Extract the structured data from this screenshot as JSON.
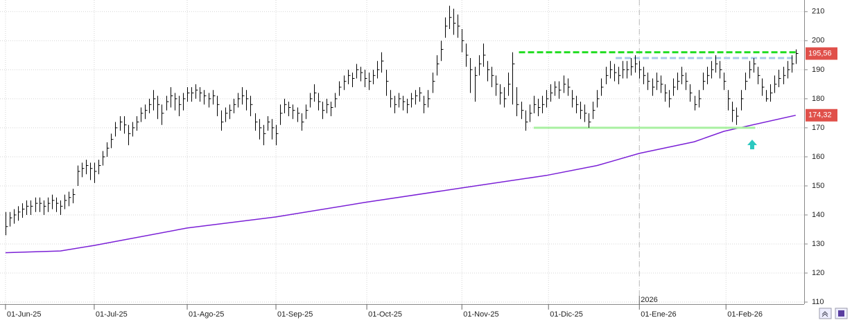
{
  "chart_data": {
    "type": "ohlc",
    "xlim": [
      -1.3,
      189
    ],
    "ylim": [
      109.3,
      214
    ],
    "yticks": [
      110,
      120,
      130,
      140,
      150,
      160,
      170,
      180,
      190,
      200,
      210
    ],
    "xticks": [
      {
        "value": 0,
        "label": "01-Jun-25"
      },
      {
        "value": 21,
        "label": "01-Jul-25"
      },
      {
        "value": 43,
        "label": "01-Ago-25"
      },
      {
        "value": 64,
        "label": "01-Sep-25"
      },
      {
        "value": 85.5,
        "label": "01-Oct-25"
      },
      {
        "value": 108,
        "label": "01-Nov-25"
      },
      {
        "value": 128.5,
        "label": "01-Dic-25"
      },
      {
        "value": 150,
        "label": "01-Ene-26"
      },
      {
        "value": 170.5,
        "label": "01-Feb-26"
      }
    ],
    "grid": true,
    "year_marker": {
      "value": 150,
      "label": "2026"
    },
    "bar_color": "#000000",
    "high": [
      141,
      141,
      142,
      143,
      144,
      145,
      145,
      146,
      146,
      145,
      146,
      147,
      146,
      145,
      147,
      148,
      149,
      157,
      158,
      159,
      158,
      158,
      159,
      162,
      165,
      168,
      172,
      174,
      174,
      171,
      172,
      174,
      177,
      178,
      180,
      183,
      181,
      178,
      181,
      184,
      182,
      181,
      182,
      184,
      184,
      185,
      184,
      183,
      182,
      183,
      181,
      176,
      177,
      178,
      180,
      182,
      184,
      183,
      181,
      175,
      173,
      171,
      174,
      173,
      171,
      178,
      180,
      179,
      178,
      177,
      175,
      178,
      182,
      185,
      182,
      179,
      180,
      179,
      182,
      186,
      188,
      190,
      189,
      192,
      191,
      190,
      189,
      190,
      193,
      196,
      190,
      183,
      181,
      182,
      181,
      180,
      182,
      183,
      184,
      181,
      183,
      189,
      195,
      200,
      208,
      212,
      211,
      209,
      204,
      199,
      194,
      191,
      195,
      199,
      193,
      191,
      188,
      185,
      184,
      189,
      196,
      184,
      179,
      176,
      178,
      181,
      180,
      181,
      183,
      185,
      186,
      186,
      188,
      187,
      183,
      181,
      179,
      178,
      175,
      179,
      183,
      187,
      191,
      193,
      192,
      191,
      193,
      193,
      194,
      195,
      193,
      191,
      189,
      187,
      189,
      188,
      185,
      183,
      187,
      189,
      191,
      189,
      185,
      181,
      183,
      189,
      191,
      193,
      195,
      193,
      189,
      183,
      179,
      177,
      183,
      189,
      193,
      194,
      191,
      187,
      183,
      185,
      188,
      190,
      191,
      193,
      195,
      197
    ],
    "low": [
      133,
      136,
      137,
      138,
      139,
      140,
      140,
      141,
      141,
      140,
      141,
      142,
      141,
      140,
      142,
      143,
      144,
      150,
      153,
      154,
      152,
      151,
      154,
      157,
      160,
      163,
      167,
      169,
      168,
      164,
      167,
      169,
      172,
      173,
      175,
      176,
      173,
      171,
      176,
      177,
      176,
      174,
      176,
      179,
      179,
      180,
      179,
      178,
      177,
      178,
      174,
      169,
      172,
      173,
      175,
      177,
      178,
      176,
      174,
      169,
      166,
      164,
      169,
      166,
      164,
      171,
      175,
      174,
      173,
      172,
      169,
      173,
      177,
      179,
      176,
      173,
      175,
      174,
      177,
      181,
      183,
      185,
      184,
      187,
      186,
      184,
      183,
      185,
      187,
      189,
      181,
      177,
      175,
      177,
      176,
      175,
      177,
      178,
      179,
      175,
      177,
      182,
      188,
      193,
      201,
      204,
      202,
      201,
      196,
      191,
      182,
      179,
      188,
      191,
      186,
      184,
      181,
      178,
      177,
      181,
      178,
      174,
      173,
      169,
      172,
      175,
      174,
      175,
      177,
      179,
      181,
      180,
      182,
      181,
      177,
      175,
      173,
      172,
      170,
      173,
      177,
      181,
      185,
      187,
      186,
      185,
      187,
      187,
      188,
      189,
      187,
      185,
      183,
      181,
      183,
      182,
      179,
      177,
      181,
      183,
      185,
      183,
      179,
      176,
      177,
      183,
      185,
      187,
      189,
      187,
      183,
      176,
      172,
      171,
      176,
      183,
      187,
      189,
      185,
      181,
      179,
      179,
      182,
      184,
      185,
      187,
      189,
      192
    ],
    "close": [
      136,
      139,
      140,
      141,
      142,
      143,
      143,
      144,
      144,
      143,
      144,
      145,
      144,
      143,
      145,
      146,
      147,
      155,
      156,
      157,
      156,
      155,
      157,
      160,
      163,
      166,
      170,
      172,
      171,
      168,
      170,
      172,
      175,
      176,
      178,
      180,
      178,
      175,
      179,
      181,
      180,
      178,
      180,
      182,
      182,
      183,
      182,
      181,
      180,
      181,
      178,
      172,
      175,
      176,
      178,
      180,
      181,
      180,
      178,
      172,
      170,
      168,
      172,
      170,
      168,
      175,
      178,
      177,
      176,
      175,
      172,
      176,
      180,
      182,
      179,
      176,
      178,
      177,
      180,
      184,
      186,
      188,
      187,
      190,
      189,
      187,
      186,
      188,
      190,
      193,
      186,
      180,
      178,
      180,
      179,
      178,
      180,
      181,
      182,
      178,
      180,
      186,
      192,
      197,
      205,
      208,
      206,
      205,
      200,
      195,
      190,
      188,
      192,
      195,
      190,
      188,
      185,
      182,
      180,
      185,
      192,
      178,
      176,
      172,
      175,
      178,
      177,
      178,
      180,
      182,
      184,
      183,
      185,
      184,
      180,
      178,
      176,
      175,
      172,
      176,
      180,
      184,
      188,
      190,
      189,
      188,
      190,
      190,
      191,
      192,
      190,
      188,
      186,
      184,
      186,
      185,
      182,
      180,
      184,
      186,
      188,
      186,
      182,
      178,
      180,
      186,
      188,
      190,
      192,
      190,
      186,
      180,
      176,
      174,
      180,
      186,
      190,
      192,
      188,
      184,
      180,
      182,
      185,
      187,
      188,
      190,
      192,
      195.56
    ],
    "moving_average": {
      "color": "#7a1fd6",
      "x": [
        0,
        13,
        21,
        43,
        64,
        85,
        108,
        128,
        140,
        150,
        163,
        170,
        187
      ],
      "values": [
        127.0,
        127.6,
        129.5,
        135.5,
        139.3,
        144.3,
        149.3,
        153.6,
        157.0,
        161.2,
        165.2,
        168.8,
        174.3
      ]
    },
    "hlines": [
      {
        "value": 196,
        "from": 121.5,
        "to": 187.4,
        "color": "#22dd22",
        "dash": true
      },
      {
        "value": 194,
        "from": 144.4,
        "to": 186.3,
        "color": "#a8c8e8",
        "dash": true
      },
      {
        "value": 170,
        "from": 125,
        "to": 177.4,
        "color": "#a8f0a0",
        "dash": false
      }
    ],
    "price_labels": [
      {
        "value": 195.56,
        "label": "195,56",
        "color": "#e0504a"
      },
      {
        "value": 174.32,
        "label": "174,32",
        "color": "#e0504a"
      }
    ]
  }
}
